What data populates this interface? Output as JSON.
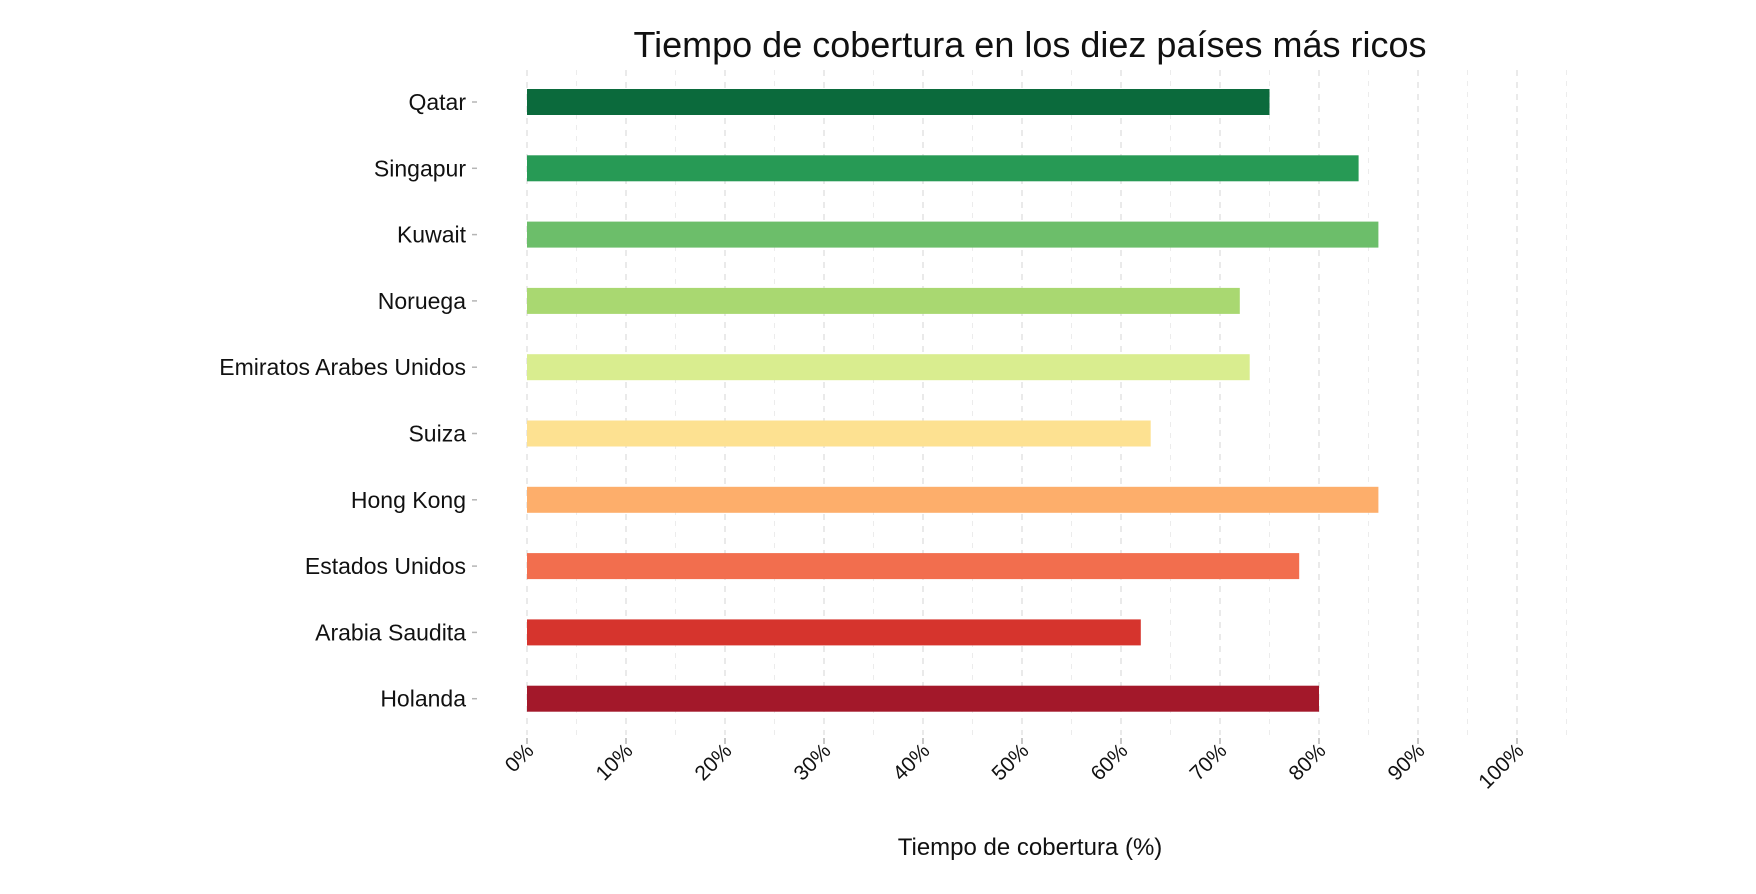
{
  "chart_data": {
    "type": "bar",
    "orientation": "horizontal",
    "title": "Tiempo de cobertura en los diez países más ricos",
    "xlabel": "Tiempo de cobertura (%)",
    "ylabel": "",
    "xlim": [
      0,
      100
    ],
    "ticks": [
      0,
      10,
      20,
      30,
      40,
      50,
      60,
      70,
      80,
      90,
      100
    ],
    "tick_labels": [
      "0%",
      "10%",
      "20%",
      "30%",
      "40%",
      "50%",
      "60%",
      "70%",
      "80%",
      "90%",
      "100%"
    ],
    "grid": true,
    "legend": "none",
    "categories": [
      "Qatar",
      "Singapur",
      "Kuwait",
      "Noruega",
      "Emiratos Arabes Unidos",
      "Suiza",
      "Hong Kong",
      "Estados Unidos",
      "Arabia Saudita",
      "Holanda"
    ],
    "values": [
      75,
      84,
      86,
      72,
      73,
      63,
      86,
      78,
      62,
      80
    ],
    "colors": [
      "#0b6a3c",
      "#279a55",
      "#6cbe6a",
      "#a9d871",
      "#d9ed8f",
      "#fde191",
      "#fdae6b",
      "#f26e4e",
      "#d6342d",
      "#a3182a"
    ]
  }
}
